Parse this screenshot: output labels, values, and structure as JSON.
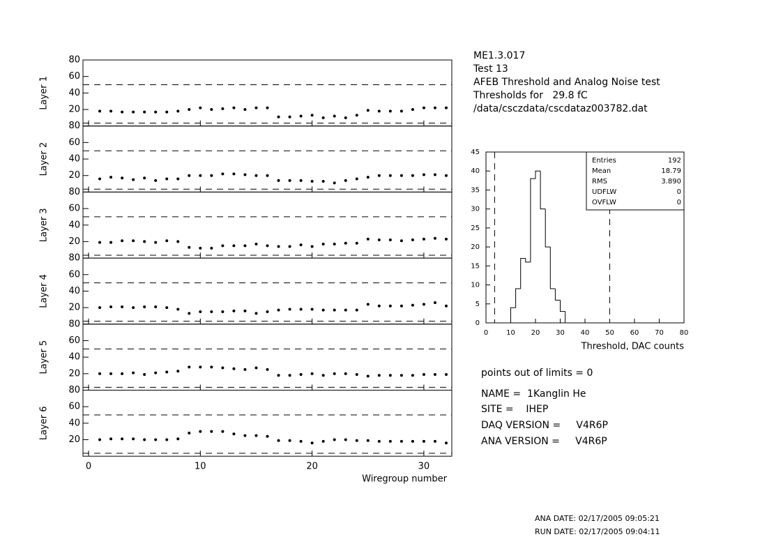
{
  "header": {
    "lines": [
      "ME1.3.017",
      "Test 13",
      "AFEB Threshold and Analog Noise test",
      "Thresholds for   29.8 fC",
      "/data/csczdata/cscdataz003782.dat"
    ]
  },
  "info": [
    "points out of limits = 0",
    "NAME =  1Kanglin He",
    "SITE =    IHEP",
    "DAQ VERSION =     V4R6P",
    "ANA VERSION =     V4R6P"
  ],
  "dates": [
    "ANA DATE: 02/17/2005 09:05:21",
    "RUN DATE: 02/17/2005 09:04:11"
  ],
  "chart_data": [
    {
      "type": "scatter",
      "ylabel": "Layer 1",
      "x": [
        1,
        2,
        3,
        4,
        5,
        6,
        7,
        8,
        9,
        10,
        11,
        12,
        13,
        14,
        15,
        16,
        17,
        18,
        19,
        20,
        21,
        22,
        23,
        24,
        25,
        26,
        27,
        28,
        29,
        30,
        31,
        32
      ],
      "values": [
        18,
        18,
        17,
        17,
        17,
        17,
        17,
        18,
        20,
        22,
        20,
        21,
        22,
        20,
        22,
        22,
        11,
        11,
        12,
        13,
        10,
        12,
        10,
        13,
        19,
        18,
        18,
        18,
        20,
        22,
        22,
        22
      ],
      "xlim": [
        -0.5,
        32.5
      ],
      "ylim": [
        0,
        80
      ],
      "yticks": [
        20,
        40,
        60,
        80
      ],
      "limits": [
        3.5,
        50
      ],
      "color": "#000000"
    },
    {
      "type": "scatter",
      "ylabel": "Layer 2",
      "x": [
        1,
        2,
        3,
        4,
        5,
        6,
        7,
        8,
        9,
        10,
        11,
        12,
        13,
        14,
        15,
        16,
        17,
        18,
        19,
        20,
        21,
        22,
        23,
        24,
        25,
        26,
        27,
        28,
        29,
        30,
        31,
        32
      ],
      "values": [
        16,
        18,
        17,
        15,
        17,
        14,
        16,
        16,
        20,
        20,
        20,
        22,
        22,
        21,
        20,
        20,
        14,
        14,
        14,
        13,
        13,
        11,
        14,
        16,
        18,
        20,
        20,
        20,
        20,
        21,
        21,
        20
      ],
      "xlim": [
        -0.5,
        32.5
      ],
      "ylim": [
        0,
        80
      ],
      "yticks": [
        20,
        40,
        60,
        80
      ],
      "limits": [
        3.5,
        50
      ],
      "color": "#000000"
    },
    {
      "type": "scatter",
      "ylabel": "Layer 3",
      "x": [
        1,
        2,
        3,
        4,
        5,
        6,
        7,
        8,
        9,
        10,
        11,
        12,
        13,
        14,
        15,
        16,
        17,
        18,
        19,
        20,
        21,
        22,
        23,
        24,
        25,
        26,
        27,
        28,
        29,
        30,
        31,
        32
      ],
      "values": [
        19,
        19,
        21,
        21,
        20,
        19,
        21,
        20,
        13,
        12,
        12,
        15,
        15,
        15,
        17,
        15,
        14,
        14,
        16,
        14,
        17,
        17,
        18,
        18,
        23,
        22,
        22,
        21,
        22,
        23,
        24,
        23
      ],
      "xlim": [
        -0.5,
        32.5
      ],
      "ylim": [
        0,
        80
      ],
      "yticks": [
        20,
        40,
        60,
        80
      ],
      "limits": [
        3.5,
        50
      ],
      "color": "#000000"
    },
    {
      "type": "scatter",
      "ylabel": "Layer 4",
      "x": [
        1,
        2,
        3,
        4,
        5,
        6,
        7,
        8,
        9,
        10,
        11,
        12,
        13,
        14,
        15,
        16,
        17,
        18,
        19,
        20,
        21,
        22,
        23,
        24,
        25,
        26,
        27,
        28,
        29,
        30,
        31,
        32
      ],
      "values": [
        20,
        21,
        21,
        20,
        21,
        21,
        20,
        18,
        13,
        15,
        15,
        15,
        16,
        16,
        13,
        15,
        17,
        18,
        18,
        18,
        17,
        17,
        17,
        17,
        24,
        22,
        22,
        22,
        23,
        24,
        26,
        22
      ],
      "xlim": [
        -0.5,
        32.5
      ],
      "ylim": [
        0,
        80
      ],
      "yticks": [
        20,
        40,
        60,
        80
      ],
      "limits": [
        3.5,
        50
      ],
      "color": "#000000"
    },
    {
      "type": "scatter",
      "ylabel": "Layer 5",
      "x": [
        1,
        2,
        3,
        4,
        5,
        6,
        7,
        8,
        9,
        10,
        11,
        12,
        13,
        14,
        15,
        16,
        17,
        18,
        19,
        20,
        21,
        22,
        23,
        24,
        25,
        26,
        27,
        28,
        29,
        30,
        31,
        32
      ],
      "values": [
        20,
        20,
        20,
        21,
        19,
        21,
        22,
        23,
        28,
        28,
        28,
        27,
        26,
        25,
        27,
        25,
        18,
        18,
        19,
        20,
        18,
        20,
        20,
        19,
        17,
        18,
        18,
        18,
        18,
        19,
        19,
        19
      ],
      "xlim": [
        -0.5,
        32.5
      ],
      "ylim": [
        0,
        80
      ],
      "yticks": [
        20,
        40,
        60,
        80
      ],
      "limits": [
        3.5,
        50
      ],
      "color": "#000000"
    },
    {
      "type": "scatter",
      "ylabel": "Layer 6",
      "x": [
        1,
        2,
        3,
        4,
        5,
        6,
        7,
        8,
        9,
        10,
        11,
        12,
        13,
        14,
        15,
        16,
        17,
        18,
        19,
        20,
        21,
        22,
        23,
        24,
        25,
        26,
        27,
        28,
        29,
        30,
        31,
        32
      ],
      "values": [
        20,
        21,
        21,
        21,
        20,
        20,
        20,
        21,
        28,
        30,
        30,
        30,
        27,
        25,
        25,
        24,
        19,
        19,
        18,
        16,
        18,
        20,
        20,
        19,
        19,
        18,
        18,
        18,
        18,
        18,
        18,
        16
      ],
      "xlim": [
        -0.5,
        32.5
      ],
      "ylim": [
        0,
        80
      ],
      "yticks": [
        20,
        40,
        60,
        80
      ],
      "limits": [
        3.5,
        50
      ],
      "color": "#000000",
      "xticks": [
        0,
        10,
        20,
        30
      ],
      "xlabel": "Wiregroup number"
    },
    {
      "type": "histogram",
      "bins": [
        10,
        12,
        14,
        16,
        18,
        20,
        22,
        24,
        26,
        28,
        30,
        32
      ],
      "values": [
        4,
        9,
        17,
        16,
        38,
        40,
        30,
        20,
        9,
        6,
        3
      ],
      "xlim": [
        0,
        80
      ],
      "xticks": [
        0,
        10,
        20,
        30,
        40,
        50,
        60,
        70,
        80
      ],
      "ylim": [
        0,
        45
      ],
      "yticks": [
        0,
        5,
        10,
        15,
        20,
        25,
        30,
        35,
        40,
        45
      ],
      "xlabel": "Threshold, DAC counts",
      "limits": [
        3.5,
        50
      ],
      "color": "#000000",
      "stats": [
        {
          "name": "Entries",
          "value": "192"
        },
        {
          "name": "Mean",
          "value": "18.79"
        },
        {
          "name": "RMS",
          "value": "3.890"
        },
        {
          "name": "UDFLW",
          "value": "0"
        },
        {
          "name": "OVFLW",
          "value": "0"
        }
      ]
    }
  ]
}
